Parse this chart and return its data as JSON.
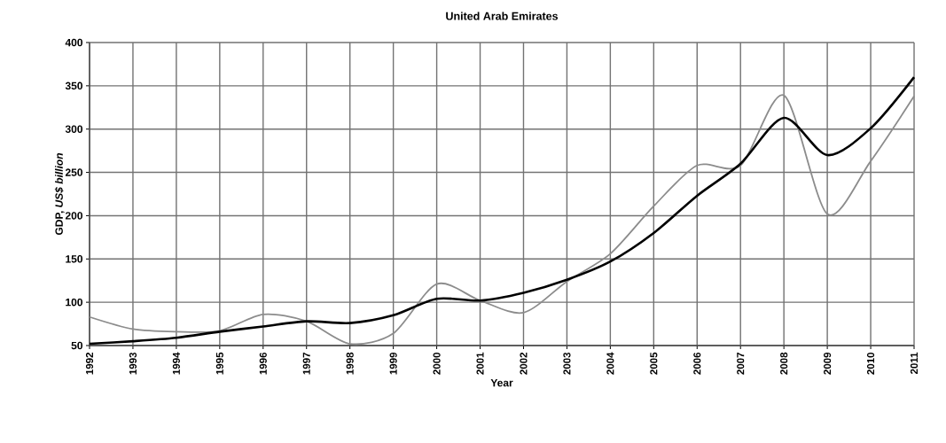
{
  "chart_data": {
    "type": "line",
    "title": "United Arab Emirates",
    "xlabel": "Year",
    "ylabel": "GDP, *US$ billion*",
    "x": [
      1992,
      1993,
      1994,
      1995,
      1996,
      1997,
      1998,
      1999,
      2000,
      2001,
      2002,
      2003,
      2004,
      2005,
      2006,
      2007,
      2008,
      2009,
      2010,
      2011
    ],
    "series": [
      {
        "color": "#8c8c8c",
        "values": [
          83,
          69,
          66,
          67,
          86,
          78,
          52,
          64,
          121,
          102,
          88,
          124,
          156,
          211,
          258,
          258,
          339,
          202,
          263,
          338
        ]
      },
      {
        "color": "#000000",
        "values": [
          52,
          55,
          59,
          66,
          72,
          78,
          76,
          85,
          104,
          102,
          111,
          126,
          147,
          180,
          223,
          260,
          313,
          270,
          301,
          360
        ]
      }
    ],
    "xlim": [
      1992,
      2011
    ],
    "ylim": [
      50,
      400
    ],
    "xticks": [
      1992,
      1993,
      1994,
      1995,
      1996,
      1997,
      1998,
      1999,
      2000,
      2001,
      2002,
      2003,
      2004,
      2005,
      2006,
      2007,
      2008,
      2009,
      2010,
      2011
    ],
    "yticks": [
      50,
      100,
      150,
      200,
      250,
      300,
      350,
      400
    ],
    "grid": true
  }
}
